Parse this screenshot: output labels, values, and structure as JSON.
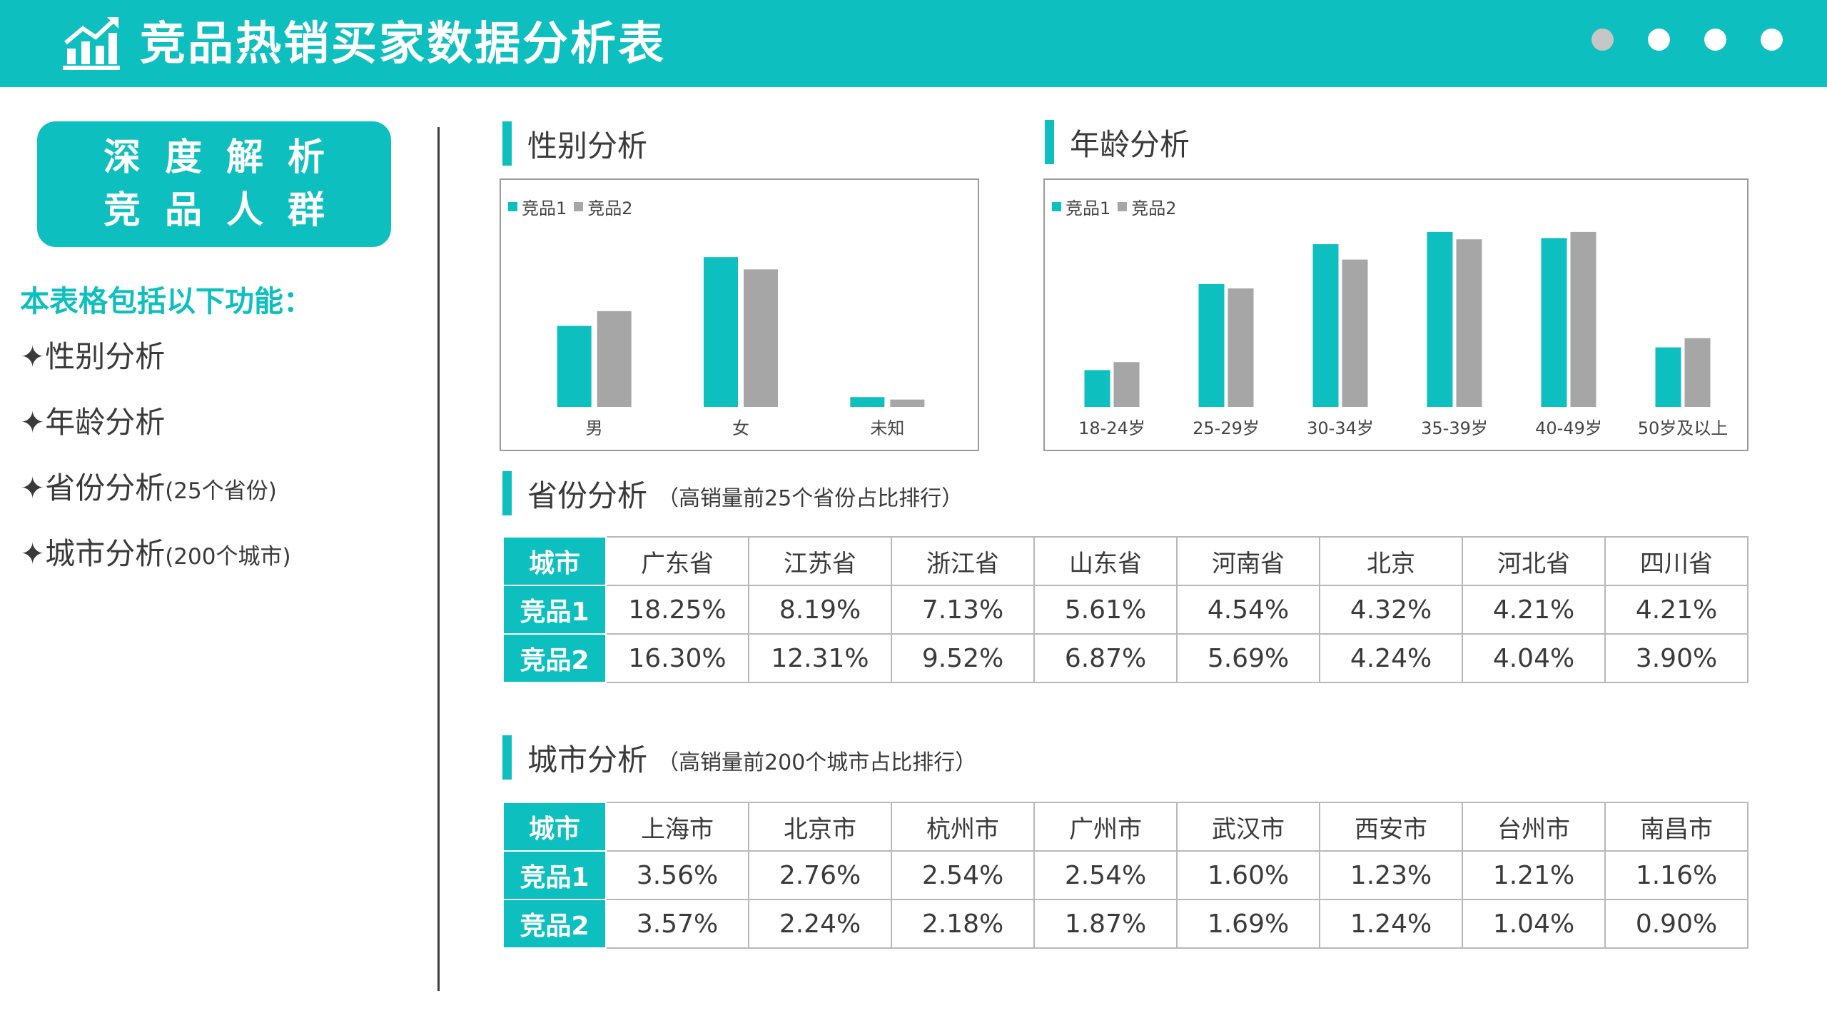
{
  "header": {
    "title": "竞品热销买家数据分析表",
    "dots": [
      "#c6c6c6",
      "#ffffff",
      "#ffffff",
      "#ffffff"
    ],
    "accent": "#0dbfbe"
  },
  "sidebar": {
    "badge_line1": "深度解析",
    "badge_line2": "竞品人群",
    "features_title": "本表格包括以下功能：",
    "features": [
      {
        "main": "✦性别分析",
        "note": ""
      },
      {
        "main": "✦年龄分析",
        "note": ""
      },
      {
        "main": "✦省份分析",
        "note": "(25个省份)"
      },
      {
        "main": "✦城市分析",
        "note": "(200个城市)"
      }
    ]
  },
  "sections": {
    "gender": "性别分析",
    "age": "年龄分析",
    "province": "省份分析",
    "province_note": "（高销量前25个省份占比排行）",
    "city": "城市分析",
    "city_note": "（高销量前200个城市占比排行）"
  },
  "chart_data": [
    {
      "type": "bar",
      "categories": [
        "男",
        "女",
        "未知"
      ],
      "series": [
        {
          "name": "竞品1",
          "color": "#0dbfbe",
          "values": [
            0.33,
            0.61,
            0.04
          ]
        },
        {
          "name": "竞品2",
          "color": "#a6a6a6",
          "values": [
            0.39,
            0.56,
            0.03
          ]
        }
      ],
      "ylim": [
        0,
        0.75
      ],
      "legend": "top-left",
      "grid": false
    },
    {
      "type": "bar",
      "categories": [
        "18-24岁",
        "25-29岁",
        "30-34岁",
        "35-39岁",
        "40-49岁",
        "50岁及以上"
      ],
      "series": [
        {
          "name": "竞品1",
          "color": "#0dbfbe",
          "values": [
            0.06,
            0.2,
            0.265,
            0.285,
            0.275,
            0.097
          ]
        },
        {
          "name": "竞品2",
          "color": "#a6a6a6",
          "values": [
            0.073,
            0.193,
            0.24,
            0.273,
            0.285,
            0.112
          ]
        }
      ],
      "ylim": [
        0,
        0.3
      ],
      "legend": "top-left",
      "grid": false
    }
  ],
  "province_table": {
    "header": "城市",
    "columns": [
      "广东省",
      "江苏省",
      "浙江省",
      "山东省",
      "河南省",
      "北京",
      "河北省",
      "四川省"
    ],
    "rows": [
      {
        "label": "竞品1",
        "values": [
          "18.25%",
          "8.19%",
          "7.13%",
          "5.61%",
          "4.54%",
          "4.32%",
          "4.21%",
          "4.21%"
        ]
      },
      {
        "label": "竞品2",
        "values": [
          "16.30%",
          "12.31%",
          "9.52%",
          "6.87%",
          "5.69%",
          "4.24%",
          "4.04%",
          "3.90%"
        ]
      }
    ]
  },
  "city_table": {
    "header": "城市",
    "columns": [
      "上海市",
      "北京市",
      "杭州市",
      "广州市",
      "武汉市",
      "西安市",
      "台州市",
      "南昌市"
    ],
    "rows": [
      {
        "label": "竞品1",
        "values": [
          "3.56%",
          "2.76%",
          "2.54%",
          "2.54%",
          "1.60%",
          "1.23%",
          "1.21%",
          "1.16%"
        ]
      },
      {
        "label": "竞品2",
        "values": [
          "3.57%",
          "2.24%",
          "2.18%",
          "1.87%",
          "1.69%",
          "1.24%",
          "1.04%",
          "0.90%"
        ]
      }
    ]
  }
}
